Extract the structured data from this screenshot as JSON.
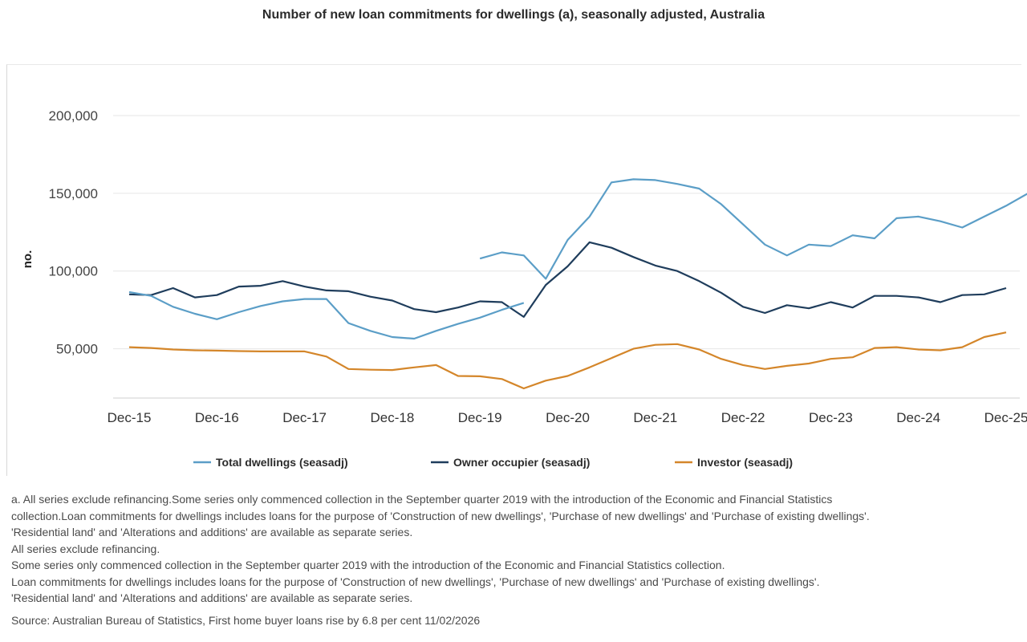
{
  "chart_data": {
    "type": "line",
    "title": "Number of new loan commitments for dwellings (a), seasonally adjusted, Australia",
    "xlabel": "",
    "ylabel": "no.",
    "ylim": [
      20000,
      215000
    ],
    "yticks": [
      50000,
      100000,
      150000,
      200000
    ],
    "ytick_labels": [
      "50,000",
      "100,000",
      "150,000",
      "200,000"
    ],
    "x_tick_labels": [
      "Dec-15",
      "Dec-16",
      "Dec-17",
      "Dec-18",
      "Dec-19",
      "Dec-20",
      "Dec-21",
      "Dec-22",
      "Dec-23",
      "Dec-24",
      "Dec-25"
    ],
    "grid": true,
    "legend_position": "bottom",
    "series": [
      {
        "name": "Total dwellings (seasadj)",
        "color": "#5b9ec7",
        "start_index": 16,
        "values": [
          108000,
          112000,
          110000,
          95000,
          120000,
          135000,
          157000,
          159000,
          158500,
          156000,
          153000,
          143000,
          130000,
          117000,
          110000,
          117000,
          116000,
          123000,
          121000,
          134000,
          135000,
          132000,
          128000,
          135000,
          142000,
          150000
        ]
      },
      {
        "name": "Owner occupier (seasadj)",
        "color": "#1f3d5c",
        "start_index": 0,
        "values": [
          85000,
          84500,
          89000,
          83000,
          84500,
          90000,
          90500,
          93500,
          90000,
          87500,
          87000,
          83500,
          81000,
          75500,
          73500,
          76500,
          80500,
          80000,
          70500,
          91000,
          103000,
          118500,
          115000,
          109000,
          103500,
          100000,
          93500,
          86000,
          77000,
          73000,
          78000,
          76000,
          80000,
          76500,
          84000,
          84000,
          83000,
          80000,
          84500,
          85000,
          89000
        ]
      },
      {
        "name": "Investor (seasadj)",
        "color": "#d4862a",
        "start_index": 0,
        "values": [
          51000,
          50500,
          49500,
          49000,
          48800,
          48500,
          48300,
          48300,
          48300,
          45000,
          37000,
          36500,
          36300,
          38000,
          39500,
          32500,
          32300,
          30500,
          24500,
          29500,
          32500,
          38000,
          44000,
          50000,
          52500,
          53000,
          49500,
          43500,
          39500,
          37000,
          39000,
          40500,
          43500,
          44500,
          50500,
          51000,
          49500,
          49000,
          51000,
          57500,
          60500
        ]
      }
    ],
    "series_overrides": {
      "Total dwellings (seasadj)_early": {
        "start_index": 0,
        "values": [
          86500,
          84000,
          77000,
          72500,
          69000,
          73500,
          77500,
          80500,
          82000,
          82000,
          66500,
          61500,
          57500,
          56500,
          61500,
          66000,
          70000,
          75000,
          79500
        ]
      }
    }
  },
  "footnotes": [
    "a. All series exclude refinancing.Some series only commenced collection in the September quarter 2019 with the introduction of the Economic and Financial Statistics",
    "collection.Loan commitments for dwellings includes loans for the purpose of 'Construction of new dwellings', 'Purchase of new dwellings' and 'Purchase of existing dwellings'.",
    "'Residential land' and 'Alterations and additions' are available as separate series.",
    "All series exclude refinancing.",
    "Some series only commenced collection in the September quarter 2019 with the introduction of the Economic and Financial Statistics collection.",
    "Loan commitments for dwellings includes loans for the purpose of 'Construction of new dwellings', 'Purchase of new dwellings' and 'Purchase of existing dwellings'.",
    "'Residential land' and 'Alterations and additions' are available as separate series."
  ],
  "source": "Source: Australian Bureau of Statistics, First home buyer loans rise by 6.8 per cent 11/02/2026"
}
